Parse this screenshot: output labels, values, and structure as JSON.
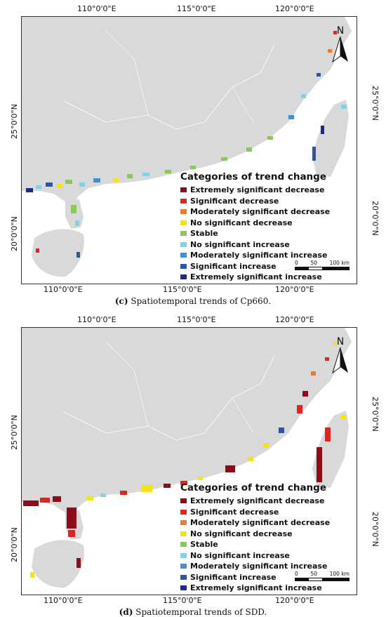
{
  "legend_title": "Categories of trend change",
  "categories": [
    {
      "label": "Extremely significant decrease",
      "color": "#8b0d1a"
    },
    {
      "label": "Significant decrease",
      "color": "#e32320"
    },
    {
      "label": "Moderately significant decrease",
      "color": "#f4782c"
    },
    {
      "label": "No significant decrease",
      "color": "#f6e314"
    },
    {
      "label": "Stable",
      "color": "#8bc85a"
    },
    {
      "label": "No significant increase",
      "color": "#7fd3e8"
    },
    {
      "label": "Moderately significant increase",
      "color": "#3f90d0"
    },
    {
      "label": "Significant increase",
      "color": "#2a55a8"
    },
    {
      "label": "Extremely significant increase",
      "color": "#1c2a8c"
    }
  ],
  "coords": {
    "lon": [
      "110°0'0\"E",
      "115°0'0\"E",
      "120°0'0\"E"
    ],
    "lat": [
      "25°0'0\"N",
      "20°0'0\"N"
    ]
  },
  "north_label": "N",
  "scale_labels": [
    "0",
    "50",
    "100 km"
  ],
  "panels": [
    {
      "letter": "(c)",
      "caption": "Spatiotemporal trends of Cp660."
    },
    {
      "letter": "(d)",
      "caption": "Spatiotemporal trends of SDD."
    }
  ]
}
